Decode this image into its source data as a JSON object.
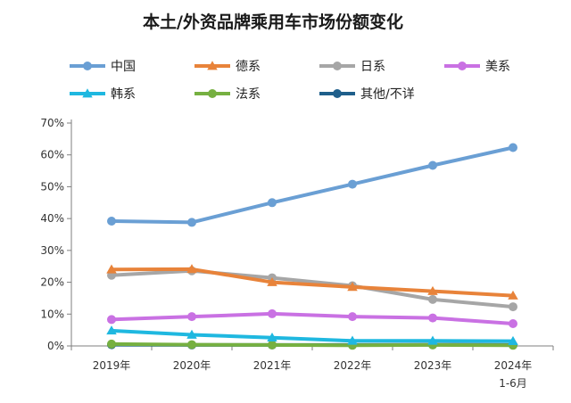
{
  "chart_data": {
    "type": "line",
    "title": "本土/外资品牌乘用车市场份额变化",
    "categories": [
      "2019年",
      "2020年",
      "2021年",
      "2022年",
      "2023年",
      "2024年\n1-6月"
    ],
    "ylim": [
      0,
      70
    ],
    "y_ticks": [
      "0%",
      "10%",
      "20%",
      "30%",
      "40%",
      "50%",
      "60%",
      "70%"
    ],
    "y_unit": "%",
    "grid": false,
    "legend_position": "top",
    "series": [
      {
        "name": "中国",
        "color": "#6a9fd4",
        "marker": "circle",
        "values": [
          39.2,
          38.8,
          45.0,
          50.8,
          56.7,
          62.3
        ]
      },
      {
        "name": "德系",
        "color": "#e8833a",
        "marker": "triangle",
        "values": [
          24.0,
          24.1,
          20.0,
          18.5,
          17.2,
          15.8
        ]
      },
      {
        "name": "日系",
        "color": "#a6a6a6",
        "marker": "circle",
        "values": [
          22.2,
          23.6,
          21.4,
          18.9,
          14.6,
          12.3
        ]
      },
      {
        "name": "美系",
        "color": "#c971e3",
        "marker": "circle",
        "values": [
          8.3,
          9.2,
          10.1,
          9.2,
          8.8,
          7.0
        ]
      },
      {
        "name": "韩系",
        "color": "#1fb8e0",
        "marker": "triangle",
        "values": [
          4.8,
          3.5,
          2.6,
          1.6,
          1.6,
          1.5
        ]
      },
      {
        "name": "法系",
        "color": "#76b041",
        "marker": "circle",
        "values": [
          0.6,
          0.4,
          0.3,
          0.2,
          0.3,
          0.2
        ]
      },
      {
        "name": "其他/不详",
        "color": "#1f5f8b",
        "marker": "circle",
        "values": [
          0.4,
          0.3,
          0.3,
          0.3,
          0.4,
          0.3
        ]
      }
    ]
  }
}
